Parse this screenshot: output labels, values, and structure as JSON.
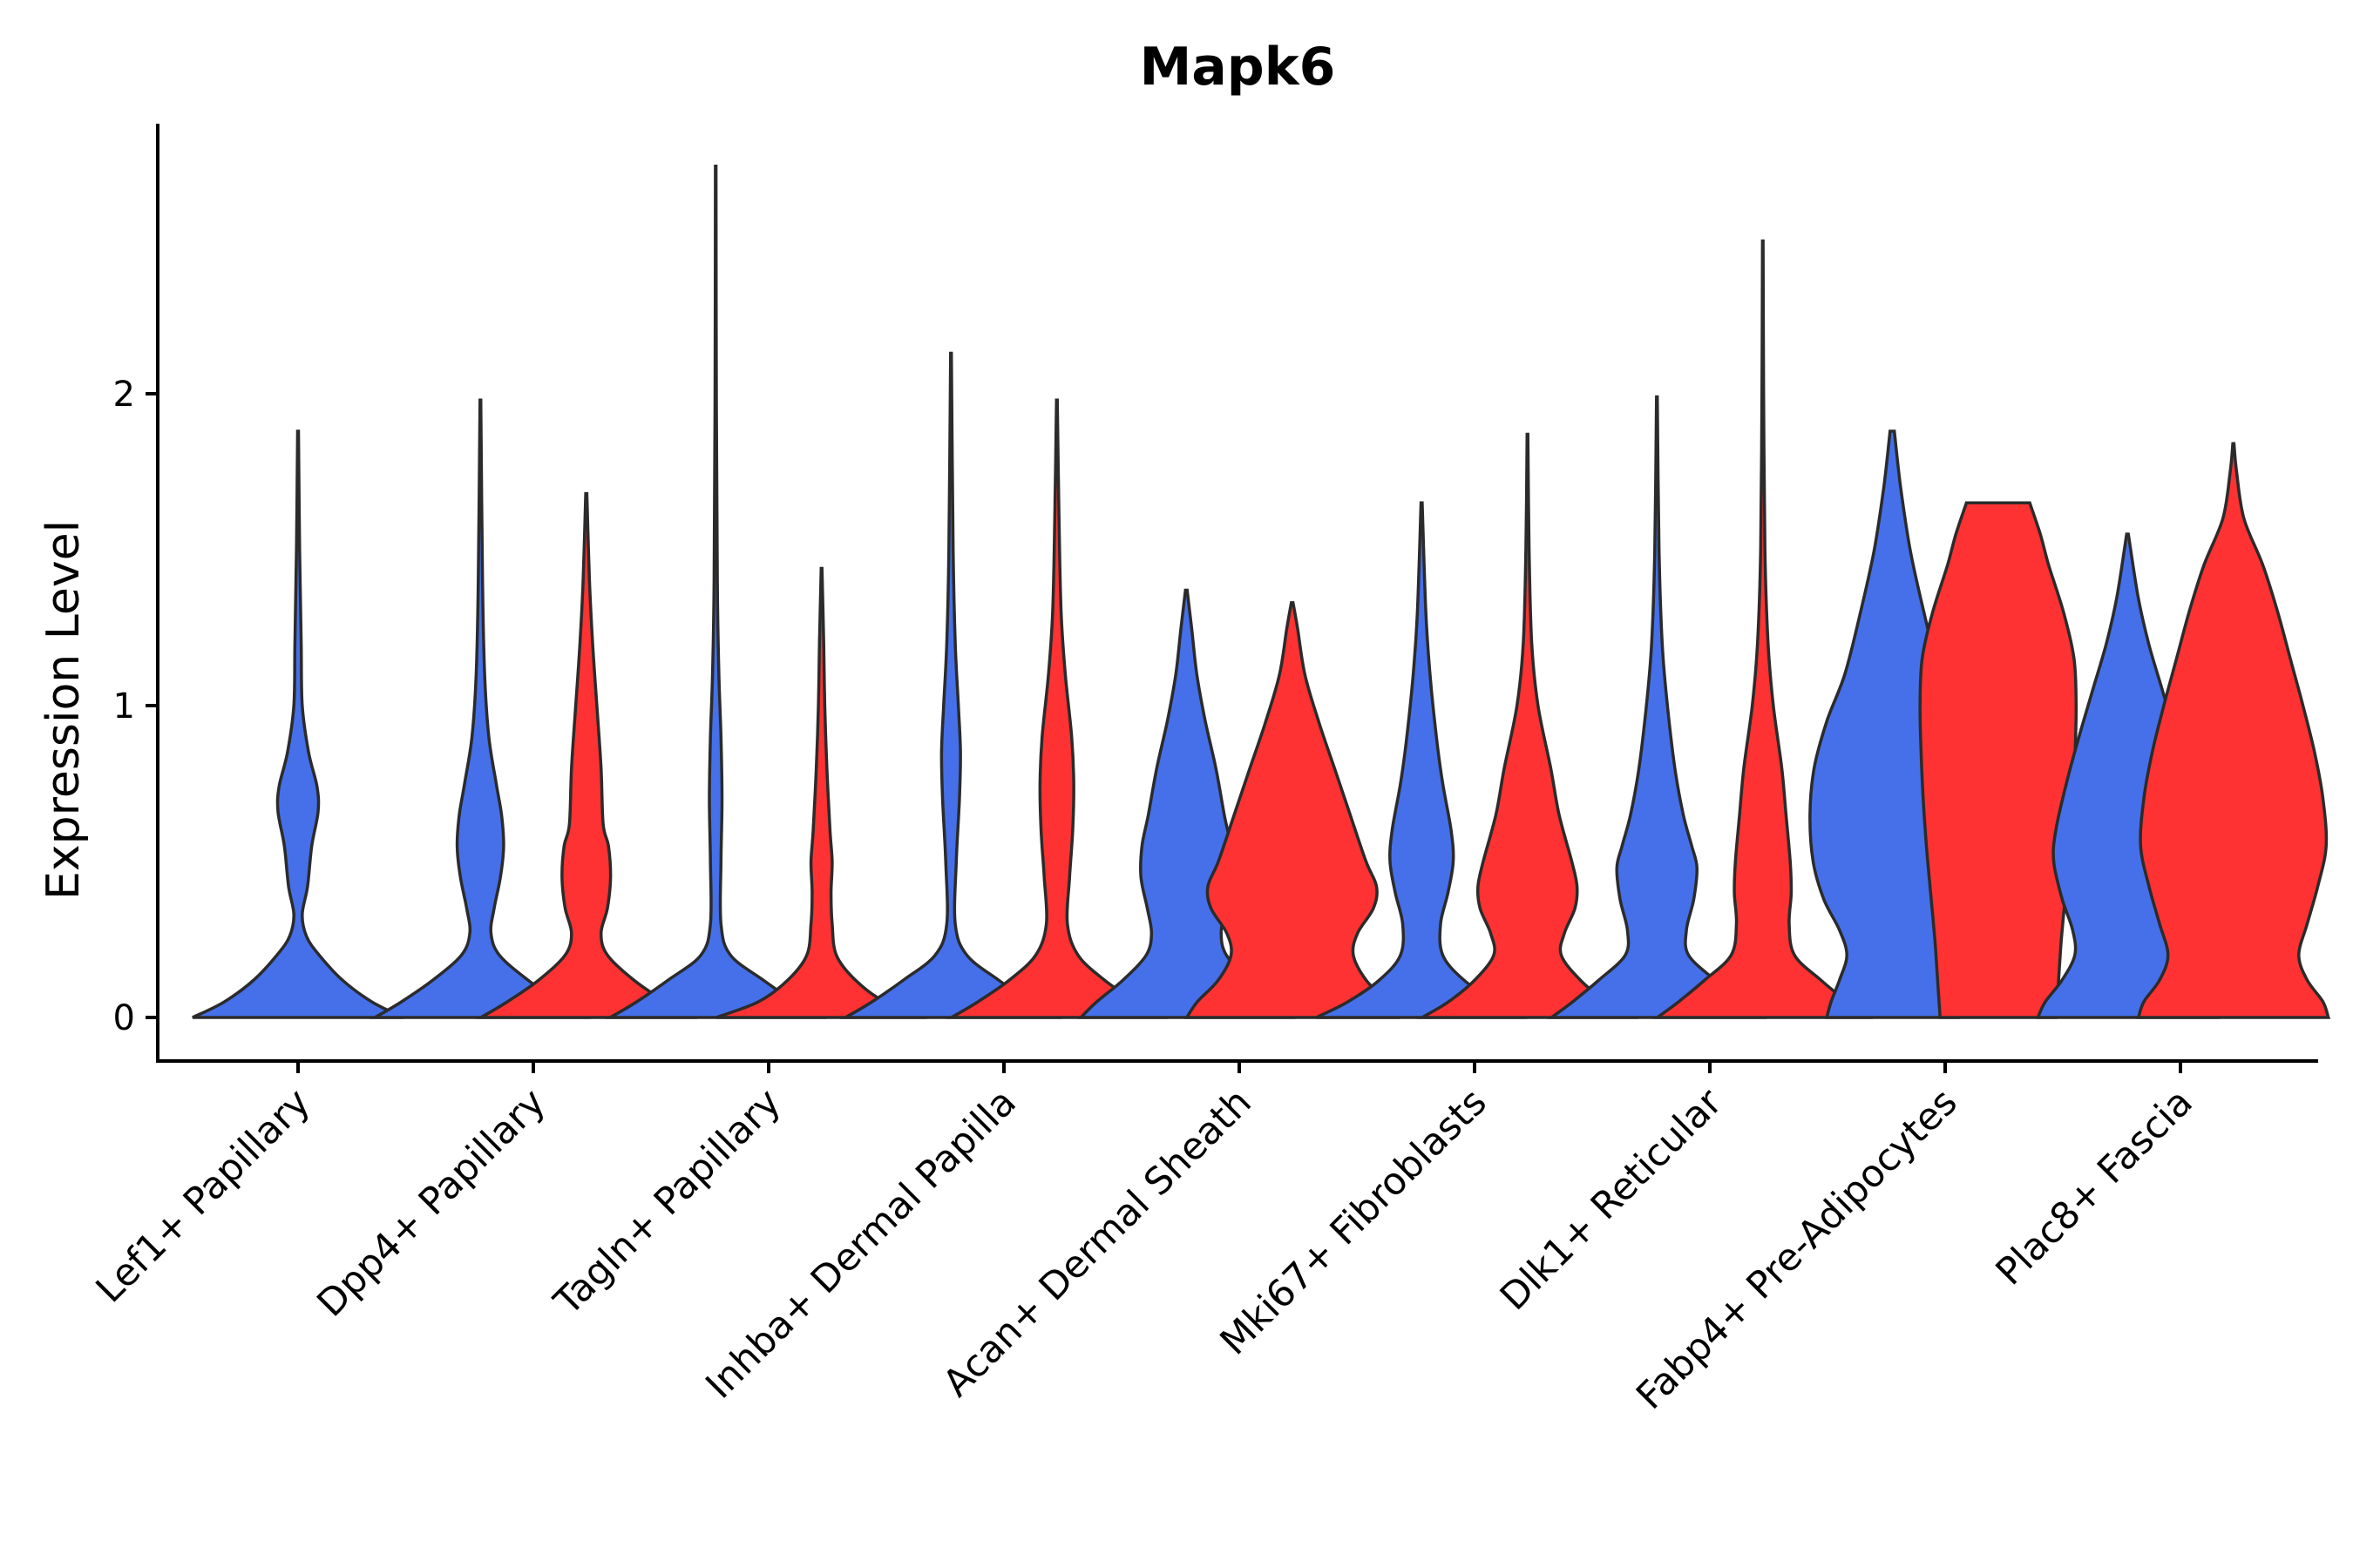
{
  "chart_data": {
    "type": "violin",
    "title": "Mapk6",
    "xlabel": "",
    "ylabel": "Expression Level",
    "ylim": [
      -0.14,
      2.9
    ],
    "yticks": [
      0,
      1,
      2
    ],
    "legend": "none",
    "grid": false,
    "colors": {
      "group_a": "#4570EA",
      "group_b": "#FE3232",
      "outline": "#2b2b2b"
    },
    "categories": [
      "Lef1+ Papillary",
      "Dpp4+ Papillary",
      "Tagln+ Papillary",
      "Inhba+ Dermal Papilla",
      "Acan+ Dermal Sheath",
      "Mki67+ Fibroblasts",
      "Dlk1+ Reticular",
      "Fabp4+ Pre-Adipocytes",
      "Plac8+ Fascia"
    ],
    "violins": [
      {
        "category": "Lef1+ Papillary",
        "group": "a",
        "offset": 0,
        "max": 1.88,
        "profile": [
          [
            0,
            1
          ],
          [
            0.05,
            0.7
          ],
          [
            0.12,
            0.42
          ],
          [
            0.2,
            0.2
          ],
          [
            0.26,
            0.08
          ],
          [
            0.33,
            0.04
          ],
          [
            0.42,
            0.09
          ],
          [
            0.55,
            0.13
          ],
          [
            0.66,
            0.19
          ],
          [
            0.74,
            0.18
          ],
          [
            0.85,
            0.1
          ],
          [
            1.0,
            0.04
          ],
          [
            1.2,
            0.03
          ],
          [
            1.5,
            0.015
          ],
          [
            1.88,
            0.004
          ]
        ]
      },
      {
        "category": "Dpp4+ Papillary",
        "group": "a",
        "offset": -0.225,
        "max": 1.98,
        "profile": [
          [
            0,
            1
          ],
          [
            0.05,
            0.75
          ],
          [
            0.12,
            0.45
          ],
          [
            0.2,
            0.18
          ],
          [
            0.27,
            0.1
          ],
          [
            0.35,
            0.13
          ],
          [
            0.45,
            0.19
          ],
          [
            0.55,
            0.22
          ],
          [
            0.65,
            0.2
          ],
          [
            0.75,
            0.15
          ],
          [
            0.9,
            0.08
          ],
          [
            1.1,
            0.04
          ],
          [
            1.4,
            0.02
          ],
          [
            1.98,
            0.004
          ]
        ]
      },
      {
        "category": "Dpp4+ Papillary",
        "group": "b",
        "offset": 0.225,
        "max": 1.68,
        "profile": [
          [
            0,
            1
          ],
          [
            0.05,
            0.75
          ],
          [
            0.12,
            0.45
          ],
          [
            0.2,
            0.2
          ],
          [
            0.27,
            0.14
          ],
          [
            0.35,
            0.2
          ],
          [
            0.45,
            0.23
          ],
          [
            0.55,
            0.21
          ],
          [
            0.62,
            0.16
          ],
          [
            0.8,
            0.14
          ],
          [
            1.0,
            0.1
          ],
          [
            1.2,
            0.06
          ],
          [
            1.4,
            0.03
          ],
          [
            1.68,
            0.005
          ]
        ]
      },
      {
        "category": "Tagln+ Papillary",
        "group": "a",
        "offset": -0.225,
        "max": 2.73,
        "profile": [
          [
            0,
            1
          ],
          [
            0.05,
            0.75
          ],
          [
            0.12,
            0.45
          ],
          [
            0.2,
            0.14
          ],
          [
            0.3,
            0.05
          ],
          [
            0.5,
            0.05
          ],
          [
            0.7,
            0.06
          ],
          [
            0.9,
            0.05
          ],
          [
            1.1,
            0.03
          ],
          [
            1.4,
            0.015
          ],
          [
            2.0,
            0.006
          ],
          [
            2.73,
            0.003
          ]
        ]
      },
      {
        "category": "Tagln+ Papillary",
        "group": "b",
        "offset": 0.225,
        "max": 1.44,
        "profile": [
          [
            0,
            1
          ],
          [
            0.05,
            0.6
          ],
          [
            0.12,
            0.32
          ],
          [
            0.2,
            0.14
          ],
          [
            0.3,
            0.1
          ],
          [
            0.4,
            0.09
          ],
          [
            0.5,
            0.1
          ],
          [
            0.6,
            0.08
          ],
          [
            0.8,
            0.05
          ],
          [
            1.0,
            0.03
          ],
          [
            1.2,
            0.02
          ],
          [
            1.44,
            0.004
          ]
        ]
      },
      {
        "category": "Inhba+ Dermal Papilla",
        "group": "a",
        "offset": -0.225,
        "max": 2.13,
        "profile": [
          [
            0,
            1
          ],
          [
            0.05,
            0.75
          ],
          [
            0.12,
            0.45
          ],
          [
            0.2,
            0.15
          ],
          [
            0.3,
            0.04
          ],
          [
            0.5,
            0.05
          ],
          [
            0.7,
            0.08
          ],
          [
            0.85,
            0.09
          ],
          [
            1.0,
            0.07
          ],
          [
            1.2,
            0.04
          ],
          [
            1.5,
            0.02
          ],
          [
            2.13,
            0.004
          ]
        ]
      },
      {
        "category": "Inhba+ Dermal Papilla",
        "group": "b",
        "offset": 0.225,
        "max": 1.98,
        "profile": [
          [
            0,
            1
          ],
          [
            0.05,
            0.75
          ],
          [
            0.12,
            0.45
          ],
          [
            0.2,
            0.2
          ],
          [
            0.3,
            0.1
          ],
          [
            0.45,
            0.12
          ],
          [
            0.6,
            0.15
          ],
          [
            0.75,
            0.16
          ],
          [
            0.9,
            0.14
          ],
          [
            1.1,
            0.08
          ],
          [
            1.3,
            0.04
          ],
          [
            1.6,
            0.02
          ],
          [
            1.98,
            0.004
          ]
        ]
      },
      {
        "category": "Acan+ Dermal Sheath",
        "group": "a",
        "offset": -0.225,
        "max": 1.37,
        "profile": [
          [
            0,
            1
          ],
          [
            0.05,
            0.85
          ],
          [
            0.12,
            0.6
          ],
          [
            0.2,
            0.38
          ],
          [
            0.27,
            0.33
          ],
          [
            0.35,
            0.37
          ],
          [
            0.45,
            0.43
          ],
          [
            0.55,
            0.42
          ],
          [
            0.65,
            0.36
          ],
          [
            0.8,
            0.28
          ],
          [
            0.95,
            0.18
          ],
          [
            1.1,
            0.1
          ],
          [
            1.25,
            0.05
          ],
          [
            1.37,
            0.008
          ]
        ]
      },
      {
        "category": "Acan+ Dermal Sheath",
        "group": "b",
        "offset": 0.225,
        "max": 1.33,
        "profile": [
          [
            0,
            1
          ],
          [
            0.05,
            0.9
          ],
          [
            0.12,
            0.7
          ],
          [
            0.2,
            0.58
          ],
          [
            0.27,
            0.62
          ],
          [
            0.35,
            0.77
          ],
          [
            0.42,
            0.8
          ],
          [
            0.5,
            0.7
          ],
          [
            0.65,
            0.55
          ],
          [
            0.8,
            0.4
          ],
          [
            0.95,
            0.25
          ],
          [
            1.1,
            0.12
          ],
          [
            1.25,
            0.05
          ],
          [
            1.33,
            0.008
          ]
        ]
      },
      {
        "category": "Mki67+ Fibroblasts",
        "group": "a",
        "offset": -0.225,
        "max": 1.65,
        "profile": [
          [
            0,
            1
          ],
          [
            0.05,
            0.7
          ],
          [
            0.12,
            0.4
          ],
          [
            0.2,
            0.2
          ],
          [
            0.3,
            0.18
          ],
          [
            0.4,
            0.25
          ],
          [
            0.5,
            0.3
          ],
          [
            0.6,
            0.28
          ],
          [
            0.75,
            0.2
          ],
          [
            0.9,
            0.14
          ],
          [
            1.1,
            0.08
          ],
          [
            1.3,
            0.04
          ],
          [
            1.65,
            0.005
          ]
        ]
      },
      {
        "category": "Mki67+ Fibroblasts",
        "group": "b",
        "offset": 0.225,
        "max": 1.87,
        "profile": [
          [
            0,
            1
          ],
          [
            0.05,
            0.75
          ],
          [
            0.12,
            0.5
          ],
          [
            0.2,
            0.32
          ],
          [
            0.27,
            0.35
          ],
          [
            0.35,
            0.45
          ],
          [
            0.42,
            0.47
          ],
          [
            0.5,
            0.42
          ],
          [
            0.65,
            0.3
          ],
          [
            0.8,
            0.22
          ],
          [
            1.0,
            0.1
          ],
          [
            1.2,
            0.04
          ],
          [
            1.5,
            0.015
          ],
          [
            1.87,
            0.004
          ]
        ]
      },
      {
        "category": "Dlk1+ Reticular",
        "group": "a",
        "offset": -0.225,
        "max": 1.99,
        "profile": [
          [
            0,
            1
          ],
          [
            0.05,
            0.8
          ],
          [
            0.12,
            0.55
          ],
          [
            0.2,
            0.3
          ],
          [
            0.28,
            0.28
          ],
          [
            0.38,
            0.35
          ],
          [
            0.48,
            0.38
          ],
          [
            0.55,
            0.33
          ],
          [
            0.65,
            0.25
          ],
          [
            0.8,
            0.17
          ],
          [
            1.0,
            0.1
          ],
          [
            1.2,
            0.05
          ],
          [
            1.5,
            0.02
          ],
          [
            1.99,
            0.004
          ]
        ]
      },
      {
        "category": "Dlk1+ Reticular",
        "group": "b",
        "offset": 0.225,
        "max": 2.49,
        "profile": [
          [
            0,
            1
          ],
          [
            0.05,
            0.8
          ],
          [
            0.12,
            0.55
          ],
          [
            0.2,
            0.3
          ],
          [
            0.3,
            0.25
          ],
          [
            0.4,
            0.27
          ],
          [
            0.5,
            0.26
          ],
          [
            0.65,
            0.22
          ],
          [
            0.8,
            0.18
          ],
          [
            1.0,
            0.1
          ],
          [
            1.2,
            0.05
          ],
          [
            1.5,
            0.02
          ],
          [
            2.0,
            0.008
          ],
          [
            2.49,
            0.003
          ]
        ]
      },
      {
        "category": "Fabp4+ Pre-Adipocytes",
        "group": "a",
        "offset": -0.225,
        "max": 1.88,
        "profile": [
          [
            0,
            0.62
          ],
          [
            0.05,
            0.58
          ],
          [
            0.12,
            0.5
          ],
          [
            0.2,
            0.43
          ],
          [
            0.28,
            0.5
          ],
          [
            0.38,
            0.65
          ],
          [
            0.5,
            0.75
          ],
          [
            0.65,
            0.78
          ],
          [
            0.8,
            0.74
          ],
          [
            0.95,
            0.62
          ],
          [
            1.1,
            0.45
          ],
          [
            1.3,
            0.3
          ],
          [
            1.5,
            0.17
          ],
          [
            1.7,
            0.08
          ],
          [
            1.88,
            0.02
          ]
        ]
      },
      {
        "category": "Fabp4+ Pre-Adipocytes",
        "group": "b",
        "offset": 0.225,
        "max": 1.65,
        "profile": [
          [
            0,
            0.55
          ],
          [
            0.1,
            0.57
          ],
          [
            0.25,
            0.6
          ],
          [
            0.4,
            0.64
          ],
          [
            0.55,
            0.68
          ],
          [
            0.7,
            0.71
          ],
          [
            0.85,
            0.73
          ],
          [
            1.0,
            0.74
          ],
          [
            1.15,
            0.72
          ],
          [
            1.3,
            0.62
          ],
          [
            1.45,
            0.48
          ],
          [
            1.55,
            0.4
          ],
          [
            1.65,
            0.3
          ]
        ]
      },
      {
        "category": "Plac8+ Fascia",
        "group": "a",
        "offset": -0.225,
        "max": 1.55,
        "profile": [
          [
            0,
            0.85
          ],
          [
            0.05,
            0.78
          ],
          [
            0.12,
            0.62
          ],
          [
            0.2,
            0.5
          ],
          [
            0.28,
            0.52
          ],
          [
            0.38,
            0.62
          ],
          [
            0.5,
            0.7
          ],
          [
            0.6,
            0.68
          ],
          [
            0.75,
            0.58
          ],
          [
            0.9,
            0.46
          ],
          [
            1.05,
            0.33
          ],
          [
            1.2,
            0.2
          ],
          [
            1.35,
            0.1
          ],
          [
            1.55,
            0.008
          ]
        ]
      },
      {
        "category": "Plac8+ Fascia",
        "group": "b",
        "offset": 0.225,
        "max": 1.84,
        "profile": [
          [
            0,
            0.9
          ],
          [
            0.05,
            0.85
          ],
          [
            0.12,
            0.7
          ],
          [
            0.2,
            0.62
          ],
          [
            0.3,
            0.7
          ],
          [
            0.42,
            0.8
          ],
          [
            0.55,
            0.88
          ],
          [
            0.7,
            0.85
          ],
          [
            0.85,
            0.77
          ],
          [
            1.0,
            0.66
          ],
          [
            1.15,
            0.54
          ],
          [
            1.3,
            0.42
          ],
          [
            1.45,
            0.28
          ],
          [
            1.6,
            0.1
          ],
          [
            1.75,
            0.03
          ],
          [
            1.84,
            0.005
          ]
        ]
      }
    ]
  }
}
